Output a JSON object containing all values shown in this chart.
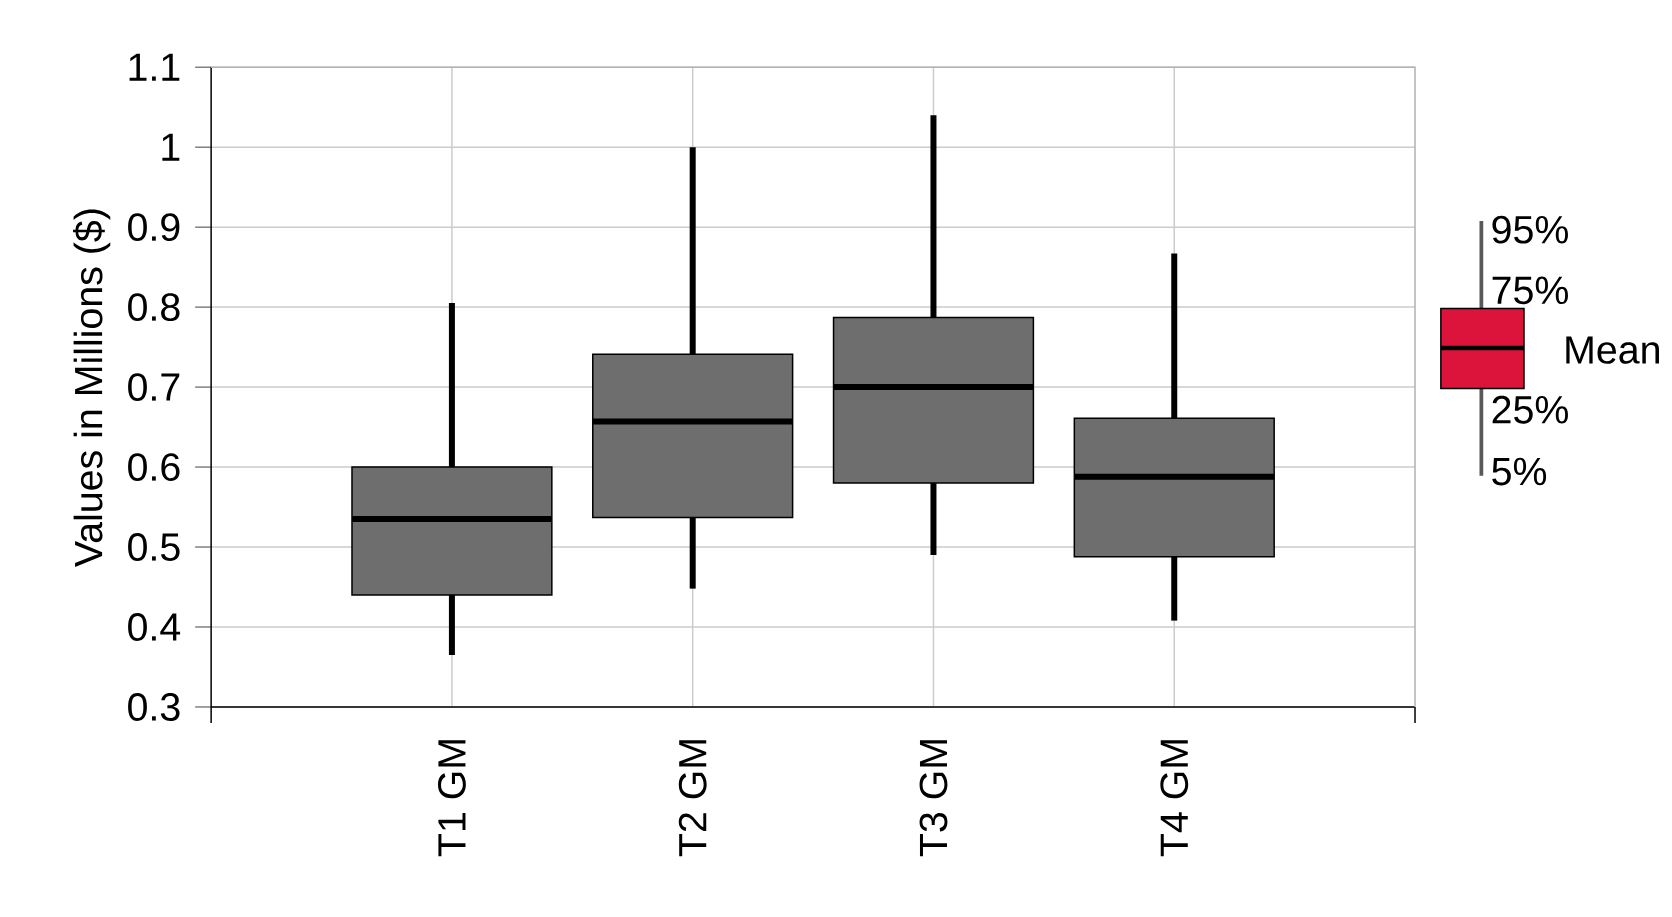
{
  "chart_data": {
    "type": "box",
    "ylabel": "Values in Millions ($)",
    "categories": [
      "T1 GM",
      "T2 GM",
      "T3 GM",
      "T4 GM"
    ],
    "color": "#6e6e6e",
    "boxes": [
      {
        "low": 0.365,
        "q1": 0.44,
        "median": 0.535,
        "q3": 0.6,
        "high": 0.805
      },
      {
        "low": 0.448,
        "q1": 0.537,
        "median": 0.657,
        "q3": 0.741,
        "high": 1.0
      },
      {
        "low": 0.49,
        "q1": 0.58,
        "median": 0.7,
        "q3": 0.787,
        "high": 1.04
      },
      {
        "low": 0.408,
        "q1": 0.488,
        "median": 0.588,
        "q3": 0.661,
        "high": 0.867
      }
    ],
    "ylim": [
      0.3,
      1.1
    ],
    "yticks": [
      0.3,
      0.4,
      0.5,
      0.6,
      0.7,
      0.8,
      0.9,
      1,
      1.1
    ],
    "grid": true,
    "annotations": [
      "95%",
      "75%",
      "Mean",
      "25%",
      "5%"
    ]
  }
}
